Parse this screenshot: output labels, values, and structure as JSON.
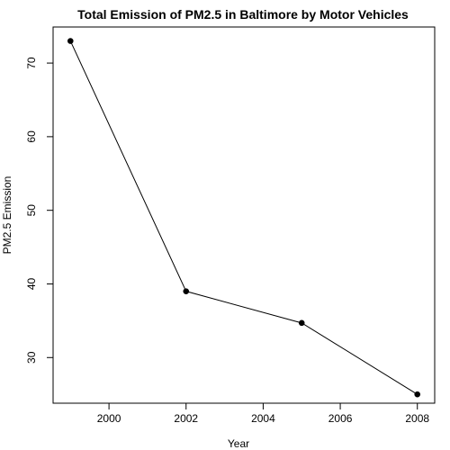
{
  "chart_data": {
    "type": "line",
    "title": "Total Emission of PM2.5 in Baltimore by Motor Vehicles",
    "xlabel": "Year",
    "ylabel": "PM2.5 Emission",
    "x": [
      1999,
      2002,
      2005,
      2008
    ],
    "y": [
      73.0,
      39.0,
      34.7,
      25.0
    ],
    "xlim": [
      1998.55,
      2008.45
    ],
    "ylim": [
      23.8,
      74.9
    ],
    "xticks": [
      2000,
      2002,
      2004,
      2006,
      2008
    ],
    "yticks": [
      30,
      40,
      50,
      60,
      70
    ],
    "marker": "filled-circle",
    "line_color": "#000000",
    "grid": false,
    "legend": null
  }
}
